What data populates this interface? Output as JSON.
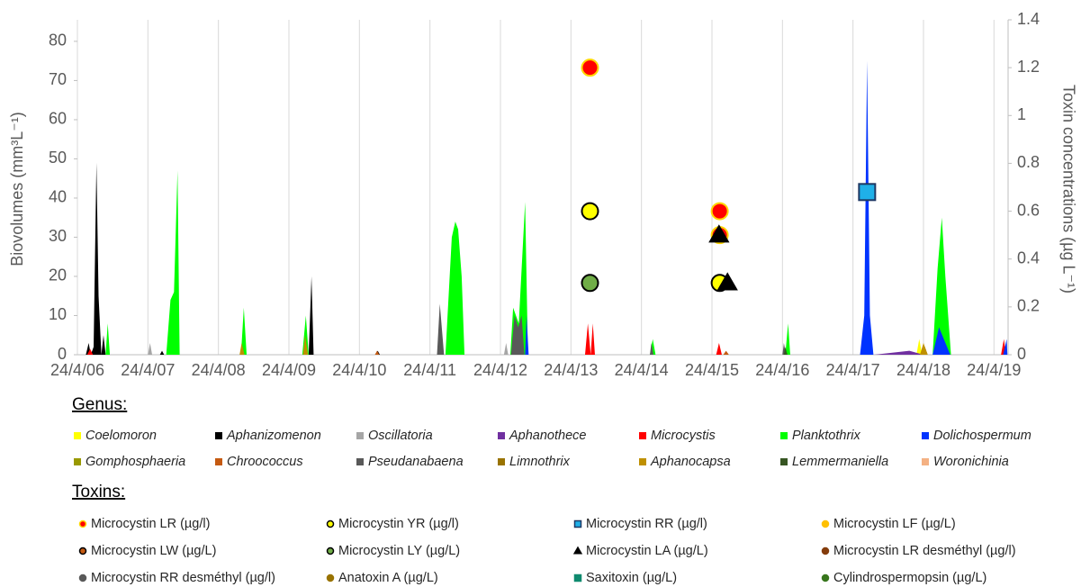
{
  "chart_data": {
    "type": "area",
    "ylabel": "Biovolumes (mm³L⁻¹)",
    "y2label": "Toxin concentrations (µg L⁻¹)",
    "xlim": [
      6,
      19.2
    ],
    "xticks": [
      {
        "value": 6,
        "label": "24/4/06"
      },
      {
        "value": 7,
        "label": "24/4/07"
      },
      {
        "value": 8,
        "label": "24/4/08"
      },
      {
        "value": 9,
        "label": "24/4/09"
      },
      {
        "value": 10,
        "label": "24/4/10"
      },
      {
        "value": 11,
        "label": "24/4/11"
      },
      {
        "value": 12,
        "label": "24/4/12"
      },
      {
        "value": 13,
        "label": "24/4/13"
      },
      {
        "value": 14,
        "label": "24/4/14"
      },
      {
        "value": 15,
        "label": "24/4/15"
      },
      {
        "value": 16,
        "label": "24/4/16"
      },
      {
        "value": 17,
        "label": "24/4/17"
      },
      {
        "value": 18,
        "label": "24/4/18"
      },
      {
        "value": 19,
        "label": "24/4/19"
      }
    ],
    "ylim": [
      0,
      85.5
    ],
    "yticks": [
      0,
      10,
      20,
      30,
      40,
      50,
      60,
      70,
      80
    ],
    "y2lim": [
      0,
      1.4
    ],
    "y2ticks": [
      0,
      0.2,
      0.4,
      0.6,
      0.8,
      1,
      1.2,
      1.4
    ],
    "grid": true,
    "legend_titles": [
      "Genus:",
      "Toxins:"
    ],
    "series": [
      {
        "name": "Coelomoron",
        "color": "#ffff00",
        "group": 0,
        "x": [
          17.9,
          17.94,
          17.98
        ],
        "values": [
          0,
          4,
          0
        ]
      },
      {
        "name": "Aphanizomenon",
        "color": "#000000",
        "group": 0,
        "x": [
          6.12,
          6.16,
          6.19,
          6.23,
          6.27,
          6.3,
          6.34,
          6.37,
          6.4,
          7.17,
          7.2,
          7.23,
          9.28,
          9.32,
          9.35,
          10.22,
          10.26,
          10.29
        ],
        "values": [
          0,
          3,
          0,
          2,
          49,
          15,
          0,
          5,
          0,
          0,
          1,
          0,
          0,
          20,
          0,
          0,
          1,
          0
        ]
      },
      {
        "name": "Oscillatoria",
        "color": "#a6a6a6",
        "group": 0,
        "x": [
          7.0,
          7.03,
          7.06,
          12.05,
          12.08,
          12.11
        ],
        "values": [
          0,
          3,
          0,
          0,
          3,
          0
        ]
      },
      {
        "name": "Aphanothece",
        "color": "#7030a0",
        "group": 0,
        "x": [
          17.3,
          17.8,
          18.0
        ],
        "values": [
          0,
          1,
          0
        ]
      },
      {
        "name": "Microcystis",
        "color": "#ff0000",
        "group": 0,
        "x": [
          6.14,
          6.18,
          6.22,
          13.2,
          13.24,
          13.28,
          13.31,
          13.34,
          15.06,
          15.1,
          15.14,
          19.1,
          19.14,
          19.17
        ],
        "values": [
          0,
          1.5,
          0,
          0,
          8,
          0,
          8,
          0,
          0,
          3,
          0,
          0,
          4,
          0
        ]
      },
      {
        "name": "Planktothrix",
        "color": "#00ff00",
        "group": 0,
        "x": [
          6.4,
          6.43,
          6.46,
          7.26,
          7.32,
          7.37,
          7.42,
          7.45,
          8.32,
          8.36,
          8.4,
          9.19,
          9.24,
          9.28,
          11.22,
          11.31,
          11.36,
          11.4,
          11.45,
          11.49,
          12.14,
          12.18,
          12.26,
          12.35,
          12.39,
          14.12,
          14.16,
          14.2,
          16.04,
          16.08,
          16.11,
          18.13,
          18.2,
          18.26,
          18.31,
          18.39
        ],
        "values": [
          0,
          8,
          0,
          0,
          14,
          16,
          47,
          0,
          0,
          12,
          0,
          0,
          10,
          0,
          0,
          30,
          34,
          32,
          20,
          0,
          0,
          12,
          8,
          39,
          0,
          0,
          4,
          0,
          0,
          8,
          0,
          0,
          22,
          35,
          20,
          0
        ]
      },
      {
        "name": "Dolichospermum",
        "color": "#0033ff",
        "group": 0,
        "x": [
          12.35,
          12.37,
          12.4,
          17.1,
          17.16,
          17.2,
          17.24,
          17.29,
          18.13,
          18.22,
          18.38,
          19.13,
          19.18,
          19.19
        ],
        "values": [
          0,
          10,
          0,
          0,
          10,
          75,
          10,
          0,
          0,
          7,
          0,
          0,
          4,
          0
        ]
      },
      {
        "name": "Gomphosphaeria",
        "color": "#999900",
        "group": 0,
        "x": [],
        "values": []
      },
      {
        "name": "Chroococcus",
        "color": "#c55a11",
        "group": 0,
        "x": [
          10.22,
          10.25,
          10.28,
          15.16,
          15.2,
          15.24
        ],
        "values": [
          0,
          1,
          0,
          0,
          1,
          0
        ]
      },
      {
        "name": "Pseudanabaena",
        "color": "#595959",
        "group": 0,
        "x": [
          11.1,
          11.14,
          11.2,
          12.15,
          12.2,
          12.25,
          12.3,
          12.34,
          14.12,
          14.14,
          14.17,
          16.0,
          16.02,
          16.05
        ],
        "values": [
          0,
          13,
          0,
          0,
          10,
          7,
          10,
          0,
          0,
          3,
          0,
          0,
          3,
          0
        ]
      },
      {
        "name": "Limnothrix",
        "color": "#997300",
        "group": 0,
        "x": [
          17.97,
          18.02,
          18.06
        ],
        "values": [
          0,
          2,
          0
        ]
      },
      {
        "name": "Aphanocapsa",
        "color": "#bf9000",
        "group": 0,
        "x": [
          8.3,
          8.33,
          8.37,
          9.2,
          9.23,
          9.27,
          17.95,
          18.0,
          18.06
        ],
        "values": [
          0,
          3,
          0,
          0,
          5,
          0,
          0,
          3,
          0
        ]
      },
      {
        "name": "Lemmermaniella",
        "color": "#375623",
        "group": 0,
        "x": [
          16.02,
          16.04,
          16.07
        ],
        "values": [
          0,
          2,
          0
        ]
      },
      {
        "name": "Woronichinia",
        "color": "#f4b183",
        "group": 0,
        "x": [],
        "values": []
      },
      {
        "name": "Microcystin LR (µg/l)",
        "type": "scatter",
        "axis": "y2",
        "marker": "circle",
        "color": "#ff0000",
        "edge": "#ffd700",
        "group": 1,
        "x": [
          13.27,
          15.11,
          15.11
        ],
        "values": [
          1.2,
          0.6,
          0.5
        ]
      },
      {
        "name": "Microcystin YR (µg/l)",
        "type": "scatter",
        "axis": "y2",
        "marker": "circle",
        "color": "#ffff00",
        "edge": "#000000",
        "group": 1,
        "x": [
          13.27,
          15.11
        ],
        "values": [
          0.6,
          0.3
        ]
      },
      {
        "name": "Microcystin RR (µg/l)",
        "type": "scatter",
        "axis": "y2",
        "marker": "square",
        "color": "#1fb0e8",
        "edge": "#1f3864",
        "group": 1,
        "x": [
          17.2
        ],
        "values": [
          0.68
        ]
      },
      {
        "name": "Microcystin  LF (µg/L)",
        "type": "scatter",
        "axis": "y2",
        "marker": "circle",
        "color": "#ffc000",
        "edge": "#ffc000",
        "group": 1,
        "x": [],
        "values": []
      },
      {
        "name": "Microcystin LW (µg/L)",
        "type": "scatter",
        "axis": "y2",
        "marker": "circle",
        "color": "#c55a11",
        "edge": "#000000",
        "group": 1,
        "x": [],
        "values": []
      },
      {
        "name": "Microcystin LY (µg/L)",
        "type": "scatter",
        "axis": "y2",
        "marker": "circle",
        "color": "#70ad47",
        "edge": "#000000",
        "group": 1,
        "x": [
          13.27
        ],
        "values": [
          0.3
        ]
      },
      {
        "name": "Microcystin LA (µg/L)",
        "type": "scatter",
        "axis": "y2",
        "marker": "triangle",
        "color": "#000000",
        "edge": "#000000",
        "group": 1,
        "x": [
          15.1,
          15.22
        ],
        "values": [
          0.5,
          0.3
        ]
      },
      {
        "name": "Microcystin LR desméthyl (µg/l)",
        "type": "scatter",
        "axis": "y2",
        "marker": "circle",
        "color": "#843c0c",
        "edge": "#843c0c",
        "group": 1,
        "x": [],
        "values": []
      },
      {
        "name": "Microcystin RR desméthyl (µg/l)",
        "type": "scatter",
        "axis": "y2",
        "marker": "circle",
        "color": "#595959",
        "edge": "#595959",
        "group": 1,
        "x": [],
        "values": []
      },
      {
        "name": "Anatoxin A (µg/L)",
        "type": "scatter",
        "axis": "y2",
        "marker": "circle",
        "color": "#997300",
        "edge": "#997300",
        "group": 1,
        "x": [],
        "values": []
      },
      {
        "name": "Saxitoxin (µg/L)",
        "type": "scatter",
        "axis": "y2",
        "marker": "square",
        "color": "#0f8a6f",
        "edge": "#0f8a6f",
        "group": 1,
        "x": [],
        "values": []
      },
      {
        "name": "Cylindrospermopsin (µg/L)",
        "type": "scatter",
        "axis": "y2",
        "marker": "circle",
        "color": "#38761d",
        "edge": "#38761d",
        "group": 1,
        "x": [],
        "values": []
      }
    ]
  }
}
